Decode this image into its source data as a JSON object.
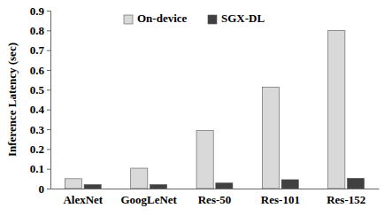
{
  "chart_data": {
    "type": "bar",
    "y_label": "Inference Latency (sec)",
    "categories": [
      "AlexNet",
      "GoogLeNet",
      "Res-50",
      "Res-101",
      "Res-152"
    ],
    "series": [
      {
        "name": "On-device",
        "color": "#d9d9d9",
        "values": [
          0.05,
          0.103,
          0.293,
          0.513,
          0.8
        ]
      },
      {
        "name": "SGX-DL",
        "color": "#404040",
        "values": [
          0.02,
          0.02,
          0.028,
          0.045,
          0.052
        ]
      }
    ],
    "ylim": [
      0,
      0.9
    ],
    "yticks": [
      0,
      0.1,
      0.2,
      0.3,
      0.4,
      0.5,
      0.6,
      0.7,
      0.8,
      0.9
    ],
    "grid": false,
    "legend": "top"
  }
}
